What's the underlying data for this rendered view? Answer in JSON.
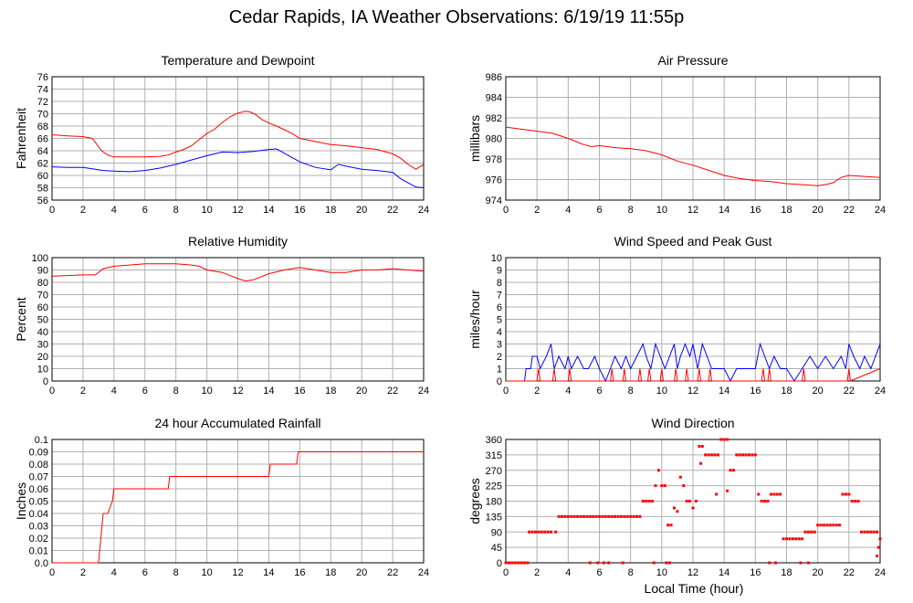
{
  "page": {
    "title": "Cedar Rapids, IA Weather Observations: 6/19/19 11:55p",
    "footer_xlabel": "Local Time (hour)"
  },
  "colors": {
    "red": "#ff0000",
    "blue": "#0000ff",
    "grid": "#b0b0b0",
    "frame": "#000000"
  },
  "chart_data": [
    {
      "id": "temperature",
      "type": "line",
      "title": "Temperature and Dewpoint",
      "xlabel": "",
      "ylabel": "Fahrenheit",
      "xlim": [
        0,
        24
      ],
      "ylim": [
        56,
        76
      ],
      "xticks": [
        0,
        2,
        4,
        6,
        8,
        10,
        12,
        14,
        16,
        18,
        20,
        22,
        24
      ],
      "yticks": [
        56,
        58,
        60,
        62,
        64,
        66,
        68,
        70,
        72,
        74,
        76
      ],
      "grid": true,
      "series": [
        {
          "color": "#ff0000",
          "x": [
            0,
            1,
            2,
            2.6,
            3.2,
            3.6,
            4,
            5,
            6,
            7,
            7.5,
            8,
            8.5,
            9,
            9.5,
            10,
            10.5,
            11,
            11.5,
            12,
            12.5,
            12.8,
            13.2,
            13.6,
            14,
            14.5,
            15,
            15.5,
            16,
            17,
            18,
            19,
            20,
            21,
            22,
            22.5,
            23,
            23.5,
            24
          ],
          "y": [
            66.6,
            66.4,
            66.3,
            66.0,
            64.0,
            63.3,
            63.0,
            63.0,
            63.0,
            63.1,
            63.3,
            63.8,
            64.2,
            64.8,
            65.8,
            66.8,
            67.5,
            68.6,
            69.5,
            70.1,
            70.4,
            70.3,
            69.8,
            69.0,
            68.5,
            68.0,
            67.4,
            66.8,
            66.0,
            65.5,
            65.0,
            64.8,
            64.5,
            64.2,
            63.5,
            62.8,
            61.8,
            61.0,
            61.8
          ]
        },
        {
          "color": "#0000ff",
          "x": [
            0,
            1,
            2,
            2.8,
            3.3,
            4,
            5,
            6,
            7,
            8,
            9,
            10,
            11,
            12,
            13,
            14,
            14.5,
            15,
            16,
            17,
            18,
            18.5,
            19,
            20,
            21,
            22,
            22.5,
            23,
            23.5,
            24
          ],
          "y": [
            61.4,
            61.3,
            61.3,
            61.0,
            60.8,
            60.7,
            60.6,
            60.8,
            61.2,
            61.8,
            62.5,
            63.2,
            63.8,
            63.7,
            63.9,
            64.2,
            64.3,
            63.6,
            62.2,
            61.3,
            60.9,
            61.8,
            61.5,
            61.0,
            60.8,
            60.5,
            59.5,
            58.8,
            58.1,
            58.0
          ]
        }
      ]
    },
    {
      "id": "pressure",
      "type": "line",
      "title": "Air Pressure",
      "xlabel": "",
      "ylabel": "millibars",
      "xlim": [
        0,
        24
      ],
      "ylim": [
        974,
        986
      ],
      "xticks": [
        0,
        2,
        4,
        6,
        8,
        10,
        12,
        14,
        16,
        18,
        20,
        22,
        24
      ],
      "yticks": [
        974,
        976,
        978,
        980,
        982,
        984,
        986
      ],
      "grid": true,
      "series": [
        {
          "color": "#ff0000",
          "x": [
            0,
            1,
            2,
            3,
            4,
            5,
            5.5,
            6,
            7,
            8,
            9,
            10,
            11,
            12,
            13,
            14,
            15,
            16,
            17,
            18,
            19,
            20,
            20.5,
            21,
            21.5,
            22,
            23,
            24
          ],
          "y": [
            981.1,
            980.9,
            980.7,
            980.5,
            980.0,
            979.4,
            979.2,
            979.3,
            979.1,
            979.0,
            978.8,
            978.4,
            977.8,
            977.4,
            976.9,
            976.4,
            976.1,
            975.9,
            975.8,
            975.6,
            975.5,
            975.4,
            975.5,
            975.7,
            976.2,
            976.4,
            976.3,
            976.2
          ]
        }
      ]
    },
    {
      "id": "humidity",
      "type": "line",
      "title": "Relative Humidity",
      "xlabel": "",
      "ylabel": "Percent",
      "xlim": [
        0,
        24
      ],
      "ylim": [
        0,
        100
      ],
      "xticks": [
        0,
        2,
        4,
        6,
        8,
        10,
        12,
        14,
        16,
        18,
        20,
        22,
        24
      ],
      "yticks": [
        0,
        10,
        20,
        30,
        40,
        50,
        60,
        70,
        80,
        90,
        100
      ],
      "grid": true,
      "series": [
        {
          "color": "#ff0000",
          "x": [
            0,
            1,
            2,
            2.8,
            3.3,
            4,
            5,
            6,
            7,
            8,
            9,
            9.5,
            10,
            11,
            12,
            12.5,
            13,
            14,
            15,
            16,
            17,
            18,
            19,
            20,
            21,
            22,
            23,
            24
          ],
          "y": [
            85,
            85.5,
            86,
            86,
            91,
            93,
            94,
            95,
            95,
            95,
            94,
            93,
            90,
            88,
            83,
            81,
            82,
            87,
            90,
            92,
            90,
            88,
            88,
            90,
            90,
            91,
            90,
            89
          ]
        }
      ]
    },
    {
      "id": "wind",
      "type": "line",
      "title": "Wind Speed and Peak Gust",
      "xlabel": "",
      "ylabel": "miles/hour",
      "xlim": [
        0,
        24
      ],
      "ylim": [
        0,
        10
      ],
      "xticks": [
        0,
        2,
        4,
        6,
        8,
        10,
        12,
        14,
        16,
        18,
        20,
        22,
        24
      ],
      "yticks": [
        0,
        1,
        2,
        3,
        4,
        5,
        6,
        7,
        8,
        9,
        10
      ],
      "grid": true,
      "series": [
        {
          "color": "#0000ff",
          "x": [
            0,
            1.2,
            1.3,
            1.6,
            1.7,
            2.0,
            2.2,
            2.6,
            2.9,
            3.1,
            3.4,
            3.8,
            4.0,
            4.2,
            4.6,
            5.0,
            5.3,
            5.7,
            6.0,
            6.4,
            6.7,
            7.0,
            7.4,
            7.7,
            8.0,
            8.4,
            8.8,
            9.0,
            9.3,
            9.6,
            9.9,
            10.2,
            10.5,
            10.8,
            11.0,
            11.2,
            11.5,
            11.8,
            12.0,
            12.3,
            12.6,
            12.9,
            13.2,
            13.6,
            14.0,
            14.4,
            14.8,
            15.2,
            15.6,
            16.0,
            16.3,
            16.6,
            16.9,
            17.2,
            17.6,
            18.0,
            18.5,
            19.0,
            19.5,
            20.0,
            20.5,
            21.0,
            21.5,
            21.8,
            22.0,
            22.3,
            22.7,
            23.0,
            23.4,
            23.7,
            24
          ],
          "y": [
            0,
            0,
            1,
            1,
            2,
            2,
            1,
            2,
            3,
            1,
            2,
            1,
            2,
            1,
            2,
            1,
            1,
            2,
            1,
            0,
            1,
            2,
            1,
            2,
            1,
            2,
            3,
            2,
            1,
            3,
            2,
            1,
            2,
            3,
            1,
            2,
            3,
            2,
            3,
            1,
            3,
            2,
            1,
            1,
            1,
            0,
            1,
            1,
            1,
            1,
            3,
            2,
            1,
            2,
            1,
            1,
            0,
            1,
            2,
            1,
            2,
            1,
            2,
            1,
            3,
            2,
            1,
            2,
            1,
            2,
            3
          ]
        },
        {
          "color": "#ff0000",
          "x": [
            0,
            2.0,
            2.1,
            2.2,
            3.0,
            3.1,
            3.2,
            4.0,
            4.1,
            4.2,
            6.7,
            6.8,
            6.9,
            7.5,
            7.6,
            7.7,
            8.5,
            8.6,
            8.7,
            9.1,
            9.2,
            9.3,
            9.9,
            10.0,
            10.1,
            10.8,
            10.9,
            11.0,
            11.5,
            11.6,
            11.7,
            12.3,
            12.4,
            12.5,
            13.0,
            13.1,
            13.2,
            16.4,
            16.5,
            16.6,
            16.8,
            16.9,
            17.0,
            19.0,
            19.1,
            19.2,
            21.9,
            22.0,
            22.1,
            24
          ],
          "y": [
            0,
            0,
            1,
            0,
            0,
            1,
            0,
            0,
            1,
            0,
            0,
            1,
            0,
            0,
            1,
            0,
            0,
            1,
            0,
            0,
            1,
            0,
            0,
            1,
            0,
            0,
            1,
            0,
            0,
            1,
            0,
            0,
            1,
            0,
            0,
            1,
            0,
            0,
            1,
            0,
            0,
            1,
            0,
            0,
            1,
            0,
            0,
            1,
            0,
            1
          ]
        }
      ]
    },
    {
      "id": "rainfall",
      "type": "line",
      "title": "24 hour Accumulated Rainfall",
      "xlabel": "",
      "ylabel": "Inches",
      "xlim": [
        0,
        24
      ],
      "ylim": [
        0,
        0.1
      ],
      "xticks": [
        0,
        2,
        4,
        6,
        8,
        10,
        12,
        14,
        16,
        18,
        20,
        22,
        24
      ],
      "yticks": [
        "0.0",
        "0.01",
        "0.02",
        "0.03",
        "0.04",
        "0.05",
        "0.06",
        "0.07",
        "0.08",
        "0.09",
        "0.1"
      ],
      "grid": true,
      "series": [
        {
          "color": "#ff0000",
          "x": [
            0,
            3.0,
            3.3,
            3.6,
            3.9,
            4.0,
            7.5,
            7.6,
            14.0,
            14.1,
            15.8,
            15.9,
            24
          ],
          "y": [
            0,
            0,
            0.04,
            0.04,
            0.05,
            0.06,
            0.06,
            0.07,
            0.07,
            0.08,
            0.08,
            0.09,
            0.09
          ]
        }
      ]
    },
    {
      "id": "direction",
      "type": "scatter",
      "title": "Wind Direction",
      "xlabel": "Local Time (hour)",
      "ylabel": "degrees",
      "xlim": [
        0,
        24
      ],
      "ylim": [
        0,
        360
      ],
      "xticks": [
        0,
        2,
        4,
        6,
        8,
        10,
        12,
        14,
        16,
        18,
        20,
        22,
        24
      ],
      "yticks": [
        0,
        45,
        90,
        135,
        180,
        225,
        270,
        315,
        360
      ],
      "grid": true,
      "series": [
        {
          "color": "#ff0000",
          "x": [
            0.0,
            0.2,
            0.4,
            0.6,
            0.8,
            1.0,
            1.2,
            1.4,
            1.5,
            1.7,
            1.9,
            2.1,
            2.3,
            2.5,
            2.7,
            2.9,
            3.2,
            3.4,
            3.6,
            3.8,
            4.0,
            4.2,
            4.4,
            4.6,
            4.8,
            5.0,
            5.2,
            5.4,
            5.6,
            5.8,
            6.0,
            6.2,
            6.4,
            6.6,
            6.8,
            7.0,
            7.2,
            7.4,
            7.6,
            7.8,
            8.0,
            8.2,
            8.4,
            8.6,
            8.8,
            9.0,
            9.2,
            9.4,
            9.6,
            9.8,
            10.0,
            10.2,
            10.4,
            10.6,
            10.8,
            11.0,
            11.2,
            11.4,
            11.6,
            11.8,
            12.0,
            12.2,
            12.4,
            12.6,
            12.8,
            13.0,
            13.2,
            13.4,
            13.6,
            13.8,
            14.0,
            14.2,
            14.4,
            14.6,
            14.8,
            15.0,
            15.2,
            15.4,
            15.6,
            15.8,
            16.0,
            16.2,
            16.4,
            16.6,
            16.8,
            17.0,
            17.2,
            17.4,
            17.6,
            17.8,
            18.0,
            18.2,
            18.4,
            18.6,
            18.8,
            19.0,
            19.2,
            19.4,
            19.6,
            19.8,
            20.0,
            20.2,
            20.4,
            20.6,
            20.8,
            21.0,
            21.2,
            21.4,
            21.6,
            21.8,
            22.0,
            22.2,
            22.4,
            22.6,
            22.8,
            23.0,
            23.2,
            23.4,
            23.6,
            23.8,
            24.0,
            5.4,
            5.9,
            6.3,
            6.6,
            7.5,
            9.5,
            10.5,
            10.3,
            12.5,
            13.5,
            14.2,
            16.9,
            17.3,
            18.9,
            19.4,
            23.8,
            23.9
          ],
          "y": [
            0,
            0,
            0,
            0,
            0,
            0,
            0,
            0,
            90,
            90,
            90,
            90,
            90,
            90,
            90,
            90,
            90,
            135,
            135,
            135,
            135,
            135,
            135,
            135,
            135,
            135,
            135,
            135,
            135,
            135,
            135,
            135,
            135,
            135,
            135,
            135,
            135,
            135,
            135,
            135,
            135,
            135,
            135,
            135,
            180,
            180,
            180,
            180,
            225,
            270,
            225,
            225,
            110,
            110,
            160,
            150,
            250,
            225,
            180,
            180,
            160,
            180,
            340,
            340,
            315,
            315,
            315,
            315,
            315,
            360,
            360,
            360,
            270,
            270,
            315,
            315,
            315,
            315,
            315,
            315,
            315,
            200,
            180,
            180,
            180,
            200,
            200,
            200,
            200,
            70,
            70,
            70,
            70,
            70,
            70,
            70,
            90,
            90,
            90,
            90,
            110,
            110,
            110,
            110,
            110,
            110,
            110,
            110,
            200,
            200,
            200,
            180,
            180,
            180,
            90,
            90,
            90,
            90,
            90,
            90,
            70,
            0,
            0,
            0,
            0,
            0,
            0,
            0,
            0,
            290,
            200,
            210,
            0,
            0,
            0,
            0,
            20,
            45
          ]
        }
      ]
    }
  ]
}
